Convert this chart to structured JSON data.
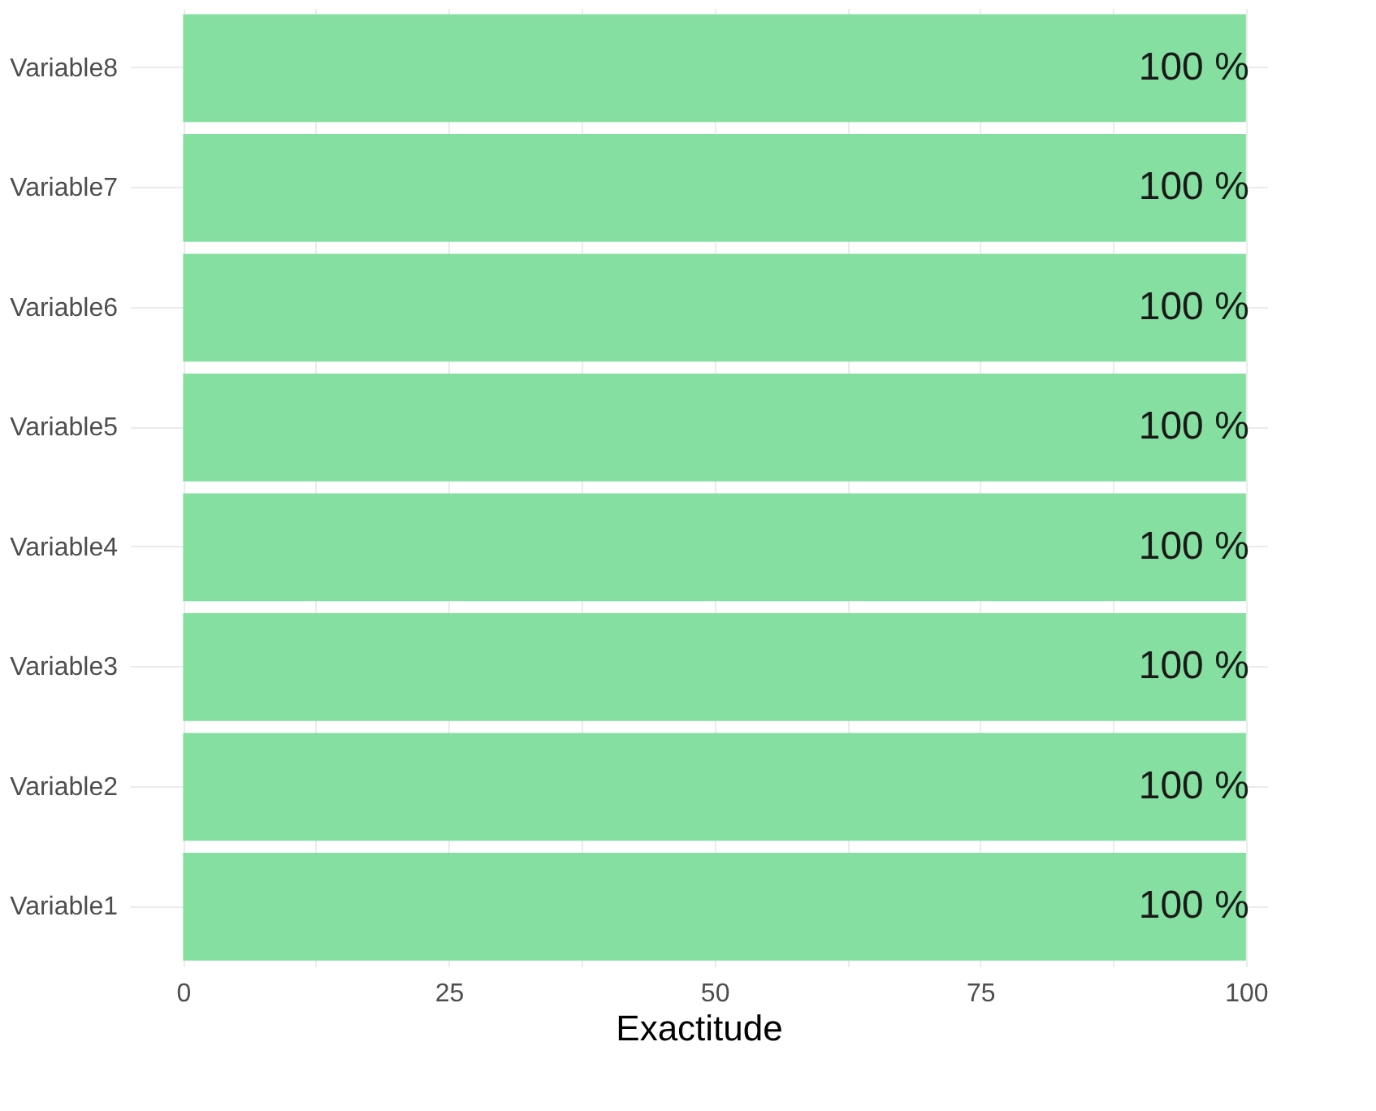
{
  "chart_data": {
    "type": "bar",
    "orientation": "horizontal",
    "xlabel": "Exactitude",
    "categories": [
      "Variable8",
      "Variable7",
      "Variable6",
      "Variable5",
      "Variable4",
      "Variable3",
      "Variable2",
      "Variable1"
    ],
    "values": [
      100,
      100,
      100,
      100,
      100,
      100,
      100,
      100
    ],
    "color": "#84dfa0",
    "value_labels": [
      "100 %",
      "100 %",
      "100 %",
      "100 %",
      "100 %",
      "100 %",
      "100 %",
      "100 %"
    ],
    "xlim": [
      -5,
      102
    ],
    "xticks": [
      0,
      {
        "value": 12.5,
        "label": null
      },
      25,
      {
        "value": 37.5,
        "label": null
      },
      50,
      {
        "value": 62.5,
        "label": null
      },
      75,
      {
        "value": 87.5,
        "label": null
      },
      100
    ],
    "grid": true
  }
}
